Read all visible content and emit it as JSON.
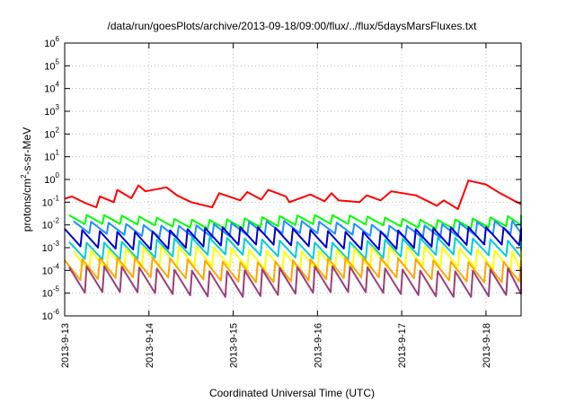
{
  "chart_data": {
    "type": "line",
    "title": "/data/run/goesPlots/archive/2013-09-18/09:00/flux/../flux/5daysMarsFluxes.txt",
    "xlabel": "Coordinated Universal Time (UTC)",
    "ylabel": {
      "base": "protons/cm",
      "sup": "2",
      "rest": "-s-sr-MeV"
    },
    "x_scale": "time",
    "y_scale": "log",
    "xlim": [
      "2013-09-13T00:00",
      "2013-09-18T10:00"
    ],
    "ylim": [
      1e-06,
      1000000.0
    ],
    "grid": true,
    "legend": "none",
    "x_ticks": [
      "2013-9-13",
      "2013-9-14",
      "2013-9-15",
      "2013-9-16",
      "2013-9-17",
      "2013-9-18"
    ],
    "y_ticks": [
      {
        "base": "10",
        "exp": "6"
      },
      {
        "base": "10",
        "exp": "5"
      },
      {
        "base": "10",
        "exp": "4"
      },
      {
        "base": "10",
        "exp": "3"
      },
      {
        "base": "10",
        "exp": "2"
      },
      {
        "base": "10",
        "exp": "1"
      },
      {
        "base": "10",
        "exp": "0"
      },
      {
        "base": "10",
        "exp": "-1"
      },
      {
        "base": "10",
        "exp": "-2"
      },
      {
        "base": "10",
        "exp": "-3"
      },
      {
        "base": "10",
        "exp": "-4"
      },
      {
        "base": "10",
        "exp": "-5"
      },
      {
        "base": "10",
        "exp": "-6"
      }
    ],
    "series": [
      {
        "color": "#ff0000",
        "x": [
          "2013-09-13T00:00",
          "2013-09-13T02:00",
          "2013-09-13T06:00",
          "2013-09-13T09:00",
          "2013-09-13T10:00",
          "2013-09-13T14:00",
          "2013-09-13T15:00",
          "2013-09-13T19:00",
          "2013-09-13T21:00",
          "2013-09-13T23:00",
          "2013-09-14T05:00",
          "2013-09-14T08:00",
          "2013-09-14T12:00",
          "2013-09-14T18:00",
          "2013-09-14T20:00",
          "2013-09-15T02:00",
          "2013-09-15T04:00",
          "2013-09-15T08:00",
          "2013-09-15T10:00",
          "2013-09-15T15:00",
          "2013-09-15T16:00",
          "2013-09-15T22:00",
          "2013-09-16T02:00",
          "2013-09-16T04:00",
          "2013-09-16T06:00",
          "2013-09-16T12:00",
          "2013-09-16T14:00",
          "2013-09-16T18:00",
          "2013-09-16T21:00",
          "2013-09-17T04:00",
          "2013-09-17T08:00",
          "2013-09-17T10:00",
          "2013-09-17T12:00",
          "2013-09-17T16:00",
          "2013-09-17T19:00",
          "2013-09-18T00:00",
          "2013-09-18T04:00",
          "2013-09-18T10:00"
        ],
        "y": [
          0.14,
          0.18,
          0.09,
          0.06,
          0.18,
          0.1,
          0.35,
          0.15,
          0.55,
          0.3,
          0.45,
          0.2,
          0.1,
          0.06,
          0.25,
          0.12,
          0.28,
          0.13,
          0.35,
          0.18,
          0.1,
          0.22,
          0.11,
          0.25,
          0.12,
          0.1,
          0.2,
          0.12,
          0.3,
          0.2,
          0.1,
          0.07,
          0.12,
          0.05,
          0.9,
          0.6,
          0.25,
          0.08
        ],
        "saw": [
          [
            0.1,
            0.22
          ],
          [
            0.1,
            0.28
          ],
          [
            0.08,
            0.3
          ],
          [
            0.09,
            0.35
          ]
        ]
      },
      {
        "color": "#00ff00",
        "base": 0.009,
        "top": 0.022
      },
      {
        "color": "#1e90ff",
        "base": 0.0035,
        "top": 0.012
      },
      {
        "color": "#0000cd",
        "base": 0.0011,
        "top": 0.0065
      },
      {
        "color": "#00ced1",
        "base": 0.0004,
        "top": 0.0022
      },
      {
        "color": "#ffff00",
        "base": 0.00012,
        "top": 0.0009
      },
      {
        "color": "#ffa500",
        "base": 4e-05,
        "top": 0.0003
      },
      {
        "color": "#9b3f7a",
        "base": 9e-06,
        "top": 0.00012
      }
    ],
    "sawtooth_period_hours": 5
  }
}
